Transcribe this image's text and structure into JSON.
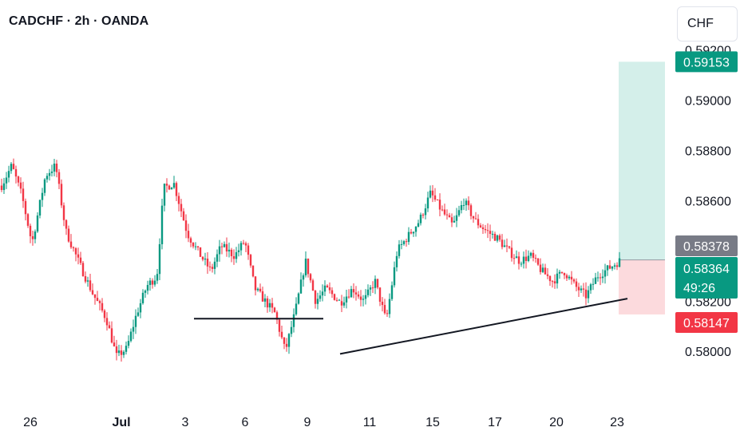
{
  "header": {
    "title": "CADCHF · 2h · OANDA",
    "currency_button": "CHF"
  },
  "price_tags": {
    "take_profit": "0.59153",
    "previous_close": "0.58378",
    "current_price": "0.58364",
    "countdown": "49:26",
    "stop_loss": "0.58147"
  },
  "colors": {
    "up": "#089981",
    "down": "#f23645",
    "grey_tag": "#787b86",
    "profit_zone": "#d4efea",
    "loss_zone": "#fcdadd"
  },
  "chart_data": {
    "type": "candlestick",
    "title": "CADCHF · 2h · OANDA",
    "y_axis": {
      "range": [
        0.5781,
        0.5924
      ],
      "ticks": [
        "0.59200",
        "0.59000",
        "0.58800",
        "0.58600",
        "0.58200",
        "0.58000"
      ]
    },
    "x_axis": {
      "ticks": [
        {
          "label": "26",
          "bold": false
        },
        {
          "label": "Jul",
          "bold": true
        },
        {
          "label": "3",
          "bold": false
        },
        {
          "label": "6",
          "bold": false
        },
        {
          "label": "9",
          "bold": false
        },
        {
          "label": "11",
          "bold": false
        },
        {
          "label": "15",
          "bold": false
        },
        {
          "label": "17",
          "bold": false
        },
        {
          "label": "20",
          "bold": false
        },
        {
          "label": "23",
          "bold": false
        }
      ]
    },
    "price_path": [
      {
        "t": 0.0,
        "p": 0.5866
      },
      {
        "t": 0.03,
        "p": 0.5874
      },
      {
        "t": 0.06,
        "p": 0.5862
      },
      {
        "t": 0.09,
        "p": 0.5843
      },
      {
        "t": 0.13,
        "p": 0.587
      },
      {
        "t": 0.16,
        "p": 0.5874
      },
      {
        "t": 0.19,
        "p": 0.5848
      },
      {
        "t": 0.23,
        "p": 0.5835
      },
      {
        "t": 0.27,
        "p": 0.5823
      },
      {
        "t": 0.31,
        "p": 0.5813
      },
      {
        "t": 0.34,
        "p": 0.5798
      },
      {
        "t": 0.37,
        "p": 0.5801
      },
      {
        "t": 0.4,
        "p": 0.5815
      },
      {
        "t": 0.43,
        "p": 0.5826
      },
      {
        "t": 0.46,
        "p": 0.583
      },
      {
        "t": 0.48,
        "p": 0.5865
      },
      {
        "t": 0.51,
        "p": 0.5867
      },
      {
        "t": 0.55,
        "p": 0.5847
      },
      {
        "t": 0.58,
        "p": 0.584
      },
      {
        "t": 0.62,
        "p": 0.5832
      },
      {
        "t": 0.65,
        "p": 0.5842
      },
      {
        "t": 0.69,
        "p": 0.5838
      },
      {
        "t": 0.72,
        "p": 0.5844
      },
      {
        "t": 0.75,
        "p": 0.5825
      },
      {
        "t": 0.78,
        "p": 0.582
      },
      {
        "t": 0.81,
        "p": 0.5815
      },
      {
        "t": 0.84,
        "p": 0.58
      },
      {
        "t": 0.87,
        "p": 0.5816
      },
      {
        "t": 0.9,
        "p": 0.5836
      },
      {
        "t": 0.93,
        "p": 0.582
      },
      {
        "t": 0.96,
        "p": 0.5825
      },
      {
        "t": 1.0,
        "p": 0.582
      }
    ],
    "price_path_2": [
      {
        "t": 0.0,
        "p": 0.582
      },
      {
        "t": 0.04,
        "p": 0.5825
      },
      {
        "t": 0.08,
        "p": 0.582
      },
      {
        "t": 0.12,
        "p": 0.5828
      },
      {
        "t": 0.16,
        "p": 0.5812
      },
      {
        "t": 0.2,
        "p": 0.584
      },
      {
        "t": 0.24,
        "p": 0.5846
      },
      {
        "t": 0.28,
        "p": 0.5852
      },
      {
        "t": 0.32,
        "p": 0.5863
      },
      {
        "t": 0.36,
        "p": 0.5856
      },
      {
        "t": 0.4,
        "p": 0.585
      },
      {
        "t": 0.44,
        "p": 0.586
      },
      {
        "t": 0.48,
        "p": 0.5852
      },
      {
        "t": 0.52,
        "p": 0.5848
      },
      {
        "t": 0.56,
        "p": 0.5845
      },
      {
        "t": 0.6,
        "p": 0.584
      },
      {
        "t": 0.64,
        "p": 0.5836
      },
      {
        "t": 0.68,
        "p": 0.5838
      },
      {
        "t": 0.72,
        "p": 0.5832
      },
      {
        "t": 0.76,
        "p": 0.5828
      },
      {
        "t": 0.8,
        "p": 0.5832
      },
      {
        "t": 0.84,
        "p": 0.5826
      },
      {
        "t": 0.88,
        "p": 0.5822
      },
      {
        "t": 0.92,
        "p": 0.583
      },
      {
        "t": 0.96,
        "p": 0.5833
      },
      {
        "t": 1.0,
        "p": 0.5836
      }
    ],
    "horizontal_level": 0.5813,
    "trendline": {
      "start_price": 0.5799,
      "end_price": 0.5821
    },
    "position": {
      "entry": 0.58364,
      "target": 0.59153,
      "stop": 0.58147
    }
  }
}
